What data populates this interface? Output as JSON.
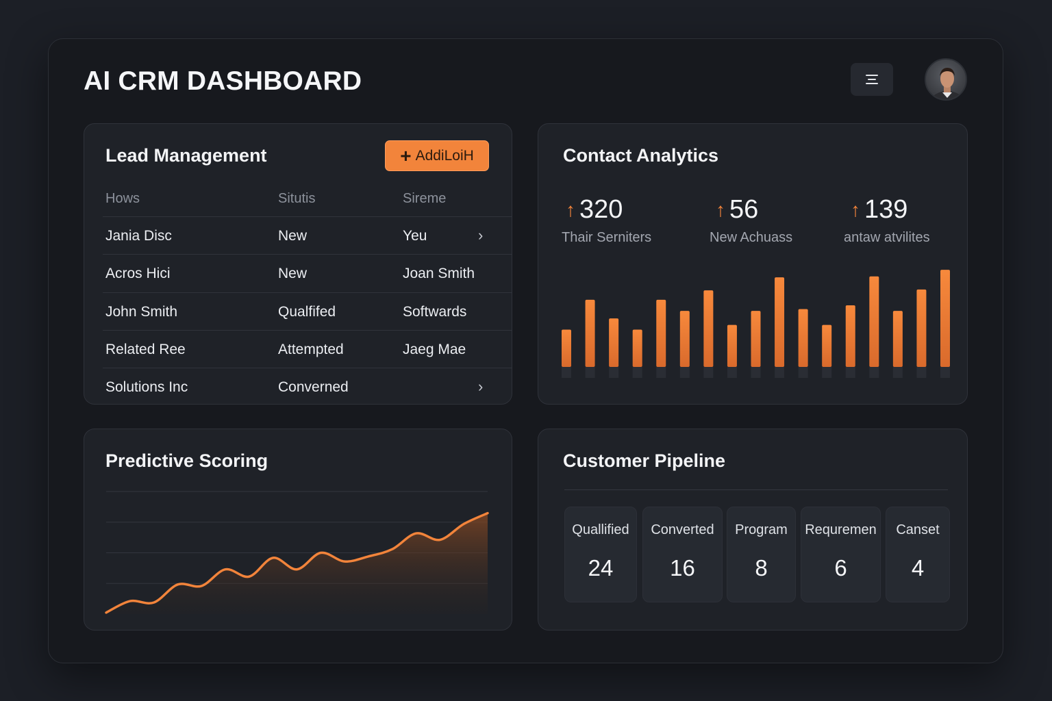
{
  "header": {
    "title": "AI CRM DASHBOARD",
    "menu_icon": "hamburger-icon",
    "avatar_icon": "user-avatar"
  },
  "lead_management": {
    "title": "Lead Management",
    "add_button": {
      "icon": "plus-icon",
      "label": "AddiLoiH"
    },
    "columns": [
      "Hows",
      "Situtis",
      "Sireme"
    ],
    "rows": [
      {
        "name": "Jania Disc",
        "status": "New",
        "owner": "Yeu",
        "chevron": true
      },
      {
        "name": "Acros Hici",
        "status": "New",
        "owner": "Joan Smith",
        "chevron": false
      },
      {
        "name": "John Smith",
        "status": "Qualfifed",
        "owner": "Softwards",
        "chevron": false
      },
      {
        "name": "Related Ree",
        "status": "Attempted",
        "owner": "Jaeg Mae",
        "chevron": false
      },
      {
        "name": "Solutions Inc",
        "status": "Converned",
        "owner": "",
        "chevron": true
      }
    ]
  },
  "contact_analytics": {
    "title": "Contact Analytics",
    "stats": [
      {
        "value": "320",
        "label": "Thair Serniters",
        "trend_icon": "arrow-up-icon"
      },
      {
        "value": "56",
        "label": "New Achuass",
        "trend_icon": "arrow-up-icon"
      },
      {
        "value": "139",
        "label": "antaw atvilites",
        "trend_icon": "arrow-up-icon"
      }
    ],
    "accent_color": "#f2843b"
  },
  "predictive_scoring": {
    "title": "Predictive Scoring"
  },
  "customer_pipeline": {
    "title": "Customer Pipeline",
    "stages": [
      {
        "name": "Quallified",
        "count": "24"
      },
      {
        "name": "Converted",
        "count": "16"
      },
      {
        "name": "Program",
        "count": "8"
      },
      {
        "name": "Requremen",
        "count": "6"
      },
      {
        "name": "Canset",
        "count": "4"
      }
    ]
  },
  "chart_data": [
    {
      "type": "bar",
      "title": "",
      "categories": [
        "1",
        "2",
        "3",
        "4",
        "5",
        "6",
        "7",
        "8",
        "9",
        "10",
        "11",
        "12",
        "13",
        "14",
        "15",
        "16",
        "17"
      ],
      "values": [
        40,
        72,
        52,
        40,
        72,
        60,
        82,
        45,
        60,
        96,
        62,
        45,
        66,
        97,
        60,
        83,
        104
      ],
      "ylim": [
        0,
        110
      ],
      "grid": false,
      "legend": "none",
      "color": "#f2843b"
    },
    {
      "type": "area",
      "title": "",
      "x": [
        0,
        1,
        2,
        3,
        4,
        5,
        6,
        7,
        8,
        9,
        10,
        11,
        12,
        13,
        14,
        15,
        16
      ],
      "values": [
        2,
        18,
        16,
        41,
        39,
        62,
        52,
        78,
        62,
        85,
        73,
        80,
        90,
        112,
        103,
        125,
        140
      ],
      "ylim": [
        0,
        170
      ],
      "grid": true,
      "legend": "none",
      "color": "#f2843b"
    }
  ]
}
